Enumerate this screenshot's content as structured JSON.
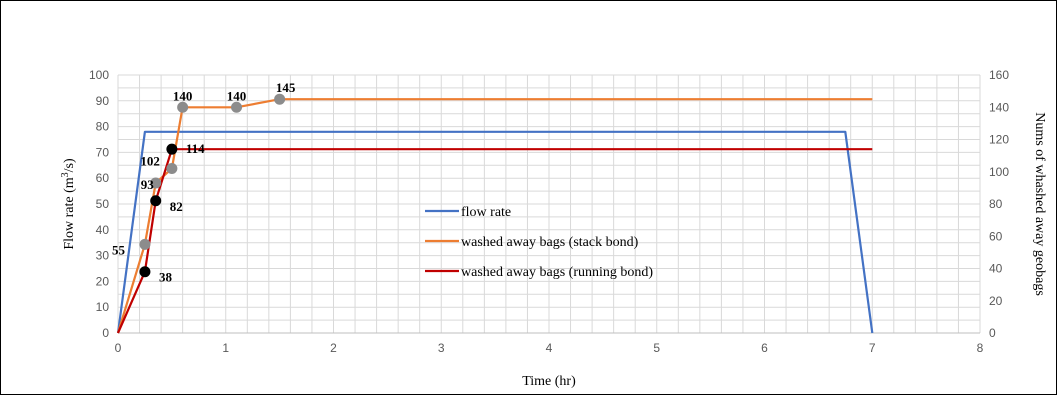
{
  "chart_data": {
    "type": "line",
    "title": "",
    "xlabel": "Time (hr)",
    "ylabel": "Flow rate (m3/s)",
    "ylabel_parts": [
      "Flow rate (m",
      "3",
      "/s)"
    ],
    "y2label": "Nums of whashed away geobags",
    "xlim": [
      0,
      8
    ],
    "ylim": [
      0,
      100
    ],
    "y2lim": [
      0,
      160
    ],
    "x_ticks": [
      "0",
      "1",
      "2",
      "3",
      "4",
      "5",
      "6",
      "7",
      "8"
    ],
    "y_ticks": [
      "0",
      "10",
      "20",
      "30",
      "40",
      "50",
      "60",
      "70",
      "80",
      "90",
      "100"
    ],
    "y2_ticks": [
      "0",
      "20",
      "40",
      "60",
      "80",
      "100",
      "120",
      "140",
      "160"
    ],
    "grid": true,
    "legend_position": "center",
    "series": [
      {
        "name": "flow rate",
        "axis": "left",
        "color": "#4472C4",
        "points": [
          [
            0,
            0
          ],
          [
            0.25,
            78
          ],
          [
            6.75,
            78
          ],
          [
            7,
            0
          ]
        ],
        "markers": []
      },
      {
        "name": "washed away bags (stack bond)",
        "axis": "right",
        "color": "#ED7D31",
        "marker_color": "#8C8C8C",
        "points": [
          [
            0,
            0
          ],
          [
            0.25,
            55
          ],
          [
            0.35,
            93
          ],
          [
            0.5,
            102
          ],
          [
            0.6,
            140
          ],
          [
            1.1,
            140
          ],
          [
            1.5,
            145
          ],
          [
            7,
            145
          ]
        ],
        "markers": [
          [
            0.25,
            55
          ],
          [
            0.35,
            93
          ],
          [
            0.5,
            102
          ],
          [
            0.6,
            140
          ],
          [
            1.1,
            140
          ],
          [
            1.5,
            145
          ]
        ],
        "labels": [
          {
            "x": 0.25,
            "y": 55,
            "text": "55"
          },
          {
            "x": 0.35,
            "y": 93,
            "text": "93"
          },
          {
            "x": 0.5,
            "y": 102,
            "text": "102"
          },
          {
            "x": 0.6,
            "y": 140,
            "text": "140"
          },
          {
            "x": 1.1,
            "y": 140,
            "text": "140"
          },
          {
            "x": 1.5,
            "y": 145,
            "text": "145"
          }
        ]
      },
      {
        "name": "washed away bags (running bond)",
        "axis": "right",
        "color": "#C00000",
        "marker_color": "#000000",
        "points": [
          [
            0,
            0
          ],
          [
            0.25,
            38
          ],
          [
            0.35,
            82
          ],
          [
            0.5,
            114
          ],
          [
            7,
            114
          ]
        ],
        "markers": [
          [
            0.25,
            38
          ],
          [
            0.35,
            82
          ],
          [
            0.5,
            114
          ]
        ],
        "labels": [
          {
            "x": 0.25,
            "y": 38,
            "text": "38"
          },
          {
            "x": 0.35,
            "y": 82,
            "text": "82"
          },
          {
            "x": 0.5,
            "y": 114,
            "text": "114"
          }
        ]
      }
    ]
  }
}
